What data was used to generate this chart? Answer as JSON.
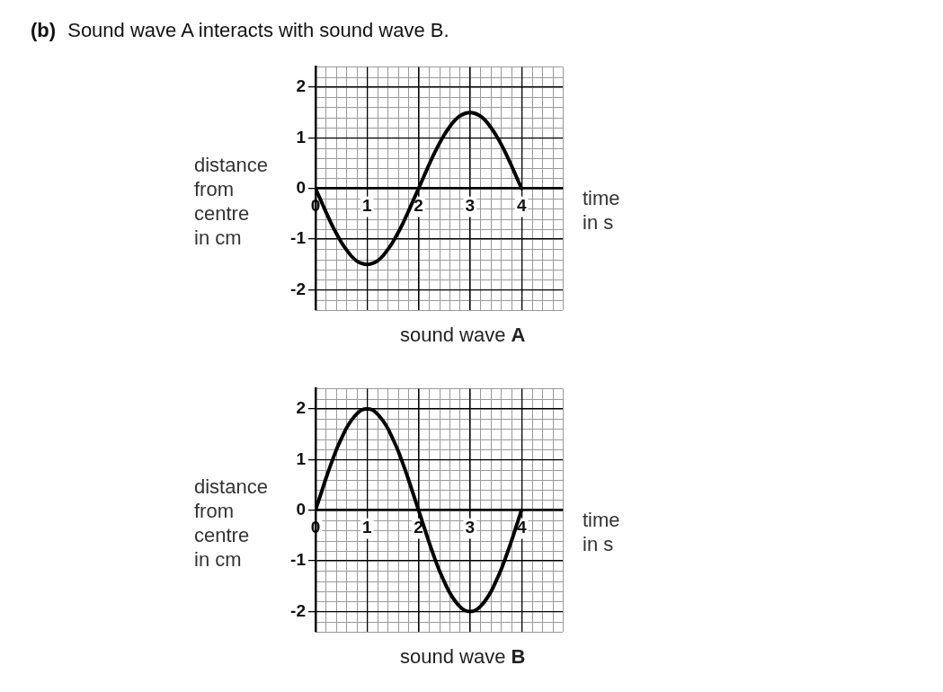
{
  "chart_data": [
    {
      "type": "line",
      "title": "sound wave A",
      "xlabel": "time in s",
      "ylabel": "distance from centre in cm",
      "annotations": [
        "(b) Sound wave A interacts with sound wave B."
      ],
      "x": [
        0,
        0.1,
        0.2,
        0.3,
        0.4,
        0.5,
        0.6,
        0.7,
        0.8,
        0.9,
        1,
        1.1,
        1.2,
        1.3,
        1.4,
        1.5,
        1.6,
        1.7,
        1.8,
        1.9,
        2,
        2.1,
        2.2,
        2.3,
        2.4,
        2.5,
        2.6,
        2.7,
        2.8,
        2.9,
        3,
        3.1,
        3.2,
        3.3,
        3.4,
        3.5,
        3.6,
        3.7,
        3.8,
        3.9,
        4
      ],
      "series": [
        {
          "color": "#000000",
          "values": [
            0,
            -0.23,
            -0.46,
            -0.68,
            -0.88,
            -1.06,
            -1.21,
            -1.34,
            -1.43,
            -1.48,
            -1.5,
            -1.48,
            -1.43,
            -1.34,
            -1.21,
            -1.06,
            -0.88,
            -0.68,
            -0.46,
            -0.23,
            0,
            0.23,
            0.46,
            0.68,
            0.88,
            1.06,
            1.21,
            1.34,
            1.43,
            1.48,
            1.5,
            1.48,
            1.43,
            1.34,
            1.21,
            1.06,
            0.88,
            0.68,
            0.46,
            0.23,
            0
          ]
        }
      ],
      "xlim": [
        0,
        4.8
      ],
      "ylim": [
        -2.4,
        2.4
      ],
      "xticks": [
        0,
        1,
        2,
        3,
        4
      ],
      "yticks": [
        -2,
        -1,
        0,
        1,
        2
      ],
      "grid": true
    },
    {
      "type": "line",
      "title": "sound wave B",
      "xlabel": "time in s",
      "ylabel": "distance from centre in cm",
      "x": [
        0,
        0.1,
        0.2,
        0.3,
        0.4,
        0.5,
        0.6,
        0.7,
        0.8,
        0.9,
        1,
        1.1,
        1.2,
        1.3,
        1.4,
        1.5,
        1.6,
        1.7,
        1.8,
        1.9,
        2,
        2.1,
        2.2,
        2.3,
        2.4,
        2.5,
        2.6,
        2.7,
        2.8,
        2.9,
        3,
        3.1,
        3.2,
        3.3,
        3.4,
        3.5,
        3.6,
        3.7,
        3.8,
        3.9,
        4
      ],
      "series": [
        {
          "color": "#000000",
          "values": [
            0,
            0.31,
            0.62,
            0.91,
            1.18,
            1.41,
            1.62,
            1.78,
            1.9,
            1.98,
            2,
            1.98,
            1.9,
            1.78,
            1.62,
            1.41,
            1.18,
            0.91,
            0.62,
            0.31,
            0,
            -0.31,
            -0.62,
            -0.91,
            -1.18,
            -1.41,
            -1.62,
            -1.78,
            -1.9,
            -1.98,
            -2,
            -1.98,
            -1.9,
            -1.78,
            -1.62,
            -1.41,
            -1.18,
            -0.91,
            -0.62,
            -0.31,
            0
          ]
        }
      ],
      "xlim": [
        0,
        4.8
      ],
      "ylim": [
        -2.4,
        2.4
      ],
      "xticks": [
        0,
        1,
        2,
        3,
        4
      ],
      "yticks": [
        -2,
        -1,
        0,
        1,
        2
      ],
      "grid": true
    }
  ]
}
